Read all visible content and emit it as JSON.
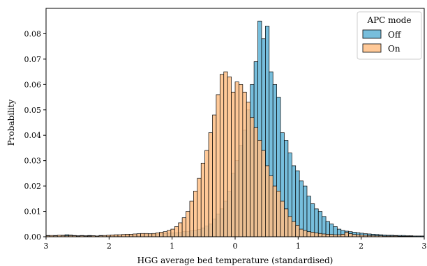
{
  "chart_data": {
    "type": "histogram",
    "title": "",
    "xlabel": "HGG average bed temperature (standardised)",
    "ylabel": "Probability",
    "xlim": [
      -3,
      3
    ],
    "ylim": [
      0,
      0.09
    ],
    "x_tick_values": [
      -3,
      -2,
      -1,
      0,
      1,
      2,
      3
    ],
    "x_tick_labels": [
      "3",
      "2",
      "1",
      "0",
      "1",
      "2",
      "3"
    ],
    "y_ticks": [
      0.0,
      0.01,
      0.02,
      0.03,
      0.04,
      0.05,
      0.06,
      0.07,
      0.08
    ],
    "y_tick_labels": [
      "0.00",
      "0.01",
      "0.02",
      "0.03",
      "0.04",
      "0.05",
      "0.06",
      "0.07",
      "0.08"
    ],
    "legend": {
      "title": "APC mode",
      "placement": "top-right"
    },
    "grid": false,
    "bin_start": -3.0,
    "bin_width": 0.06,
    "series": [
      {
        "name": "Off",
        "color": "#5fb3d6",
        "opacity": 0.85,
        "values": [
          0.0005,
          0.0003,
          0.0005,
          0.0004,
          0.0006,
          0.0008,
          0.0007,
          0.0005,
          0.0004,
          0.0005,
          0.0004,
          0.0005,
          0.0004,
          0.0003,
          0.0005,
          0.0004,
          0.0003,
          0.0005,
          0.0004,
          0.0003,
          0.0005,
          0.0004,
          0.0006,
          0.0005,
          0.0007,
          0.0008,
          0.0009,
          0.0009,
          0.001,
          0.0011,
          0.0012,
          0.0013,
          0.0014,
          0.0015,
          0.0016,
          0.0017,
          0.002,
          0.002,
          0.0024,
          0.0026,
          0.0029,
          0.0035,
          0.0042,
          0.005,
          0.007,
          0.009,
          0.011,
          0.014,
          0.018,
          0.025,
          0.03,
          0.036,
          0.042,
          0.05,
          0.06,
          0.069,
          0.085,
          0.078,
          0.083,
          0.065,
          0.06,
          0.055,
          0.041,
          0.038,
          0.033,
          0.028,
          0.026,
          0.022,
          0.02,
          0.016,
          0.013,
          0.011,
          0.01,
          0.008,
          0.006,
          0.005,
          0.004,
          0.003,
          0.0025,
          0.0022,
          0.002,
          0.0018,
          0.0016,
          0.0014,
          0.0012,
          0.0011,
          0.001,
          0.0009,
          0.0008,
          0.0007,
          0.0006,
          0.0006,
          0.0005,
          0.0005,
          0.0005,
          0.0004,
          0.0004,
          0.0003,
          0.0003,
          0.0003
        ]
      },
      {
        "name": "On",
        "color": "#ffbf86",
        "opacity": 0.85,
        "values": [
          0.0004,
          0.0005,
          0.0004,
          0.0006,
          0.0005,
          0.0004,
          0.0005,
          0.0004,
          0.0003,
          0.0004,
          0.0003,
          0.0003,
          0.0004,
          0.0003,
          0.0004,
          0.0005,
          0.0006,
          0.0007,
          0.0008,
          0.0008,
          0.0009,
          0.001,
          0.001,
          0.0011,
          0.0012,
          0.0013,
          0.0013,
          0.0012,
          0.0013,
          0.0015,
          0.0018,
          0.002,
          0.0025,
          0.003,
          0.004,
          0.0055,
          0.0075,
          0.01,
          0.014,
          0.018,
          0.023,
          0.029,
          0.034,
          0.041,
          0.048,
          0.056,
          0.064,
          0.065,
          0.063,
          0.057,
          0.061,
          0.06,
          0.057,
          0.053,
          0.047,
          0.043,
          0.038,
          0.034,
          0.028,
          0.024,
          0.02,
          0.018,
          0.014,
          0.011,
          0.008,
          0.006,
          0.0045,
          0.003,
          0.0025,
          0.002,
          0.0018,
          0.0015,
          0.0013,
          0.0011,
          0.001,
          0.0009,
          0.0008,
          0.0008,
          0.001,
          0.0018,
          0.0012,
          0.0009,
          0.0008,
          0.0007,
          0.0006,
          0.0005,
          0.0005,
          0.0004,
          0.0004,
          0.0003,
          0.0003,
          0.0003,
          0.0003,
          0.0002,
          0.0002,
          0.0002,
          0.0002,
          0.0001,
          0.0001,
          0.0001
        ]
      }
    ]
  }
}
